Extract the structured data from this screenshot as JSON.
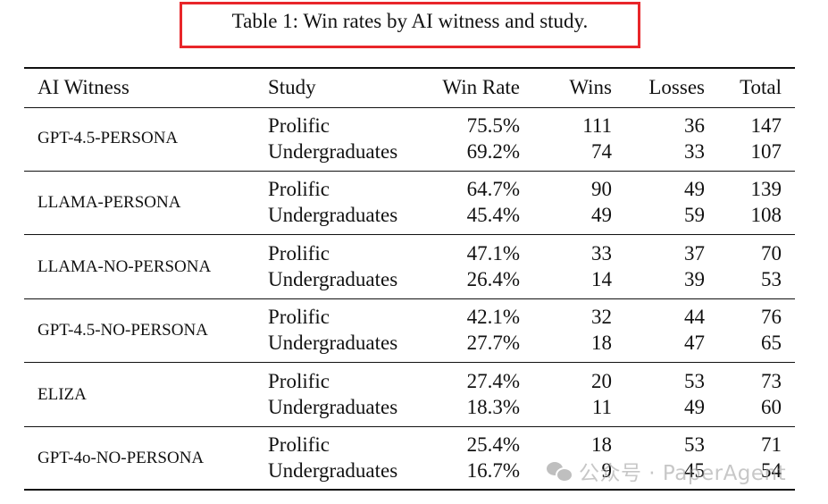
{
  "caption": "Table 1: Win rates by AI witness and study.",
  "headers": {
    "witness": "AI Witness",
    "study": "Study",
    "win_rate": "Win Rate",
    "wins": "Wins",
    "losses": "Losses",
    "total": "Total"
  },
  "groups": [
    {
      "witness": "GPT-4.5-PERSONA",
      "rows": [
        {
          "study": "Prolific",
          "win_rate": "75.5%",
          "wins": "111",
          "losses": "36",
          "total": "147"
        },
        {
          "study": "Undergraduates",
          "win_rate": "69.2%",
          "wins": "74",
          "losses": "33",
          "total": "107"
        }
      ]
    },
    {
      "witness": "LLAMA-PERSONA",
      "rows": [
        {
          "study": "Prolific",
          "win_rate": "64.7%",
          "wins": "90",
          "losses": "49",
          "total": "139"
        },
        {
          "study": "Undergraduates",
          "win_rate": "45.4%",
          "wins": "49",
          "losses": "59",
          "total": "108"
        }
      ]
    },
    {
      "witness": "LLAMA-NO-PERSONA",
      "rows": [
        {
          "study": "Prolific",
          "win_rate": "47.1%",
          "wins": "33",
          "losses": "37",
          "total": "70"
        },
        {
          "study": "Undergraduates",
          "win_rate": "26.4%",
          "wins": "14",
          "losses": "39",
          "total": "53"
        }
      ]
    },
    {
      "witness": "GPT-4.5-NO-PERSONA",
      "rows": [
        {
          "study": "Prolific",
          "win_rate": "42.1%",
          "wins": "32",
          "losses": "44",
          "total": "76"
        },
        {
          "study": "Undergraduates",
          "win_rate": "27.7%",
          "wins": "18",
          "losses": "47",
          "total": "65"
        }
      ]
    },
    {
      "witness": "ELIZA",
      "rows": [
        {
          "study": "Prolific",
          "win_rate": "27.4%",
          "wins": "20",
          "losses": "53",
          "total": "73"
        },
        {
          "study": "Undergraduates",
          "win_rate": "18.3%",
          "wins": "11",
          "losses": "49",
          "total": "60"
        }
      ]
    },
    {
      "witness": "GPT-4o-NO-PERSONA",
      "rows": [
        {
          "study": "Prolific",
          "win_rate": "25.4%",
          "wins": "18",
          "losses": "53",
          "total": "71"
        },
        {
          "study": "Undergraduates",
          "win_rate": "16.7%",
          "wins": "9",
          "losses": "45",
          "total": "54"
        }
      ]
    }
  ],
  "watermark": "公众号 · PaperAgent"
}
